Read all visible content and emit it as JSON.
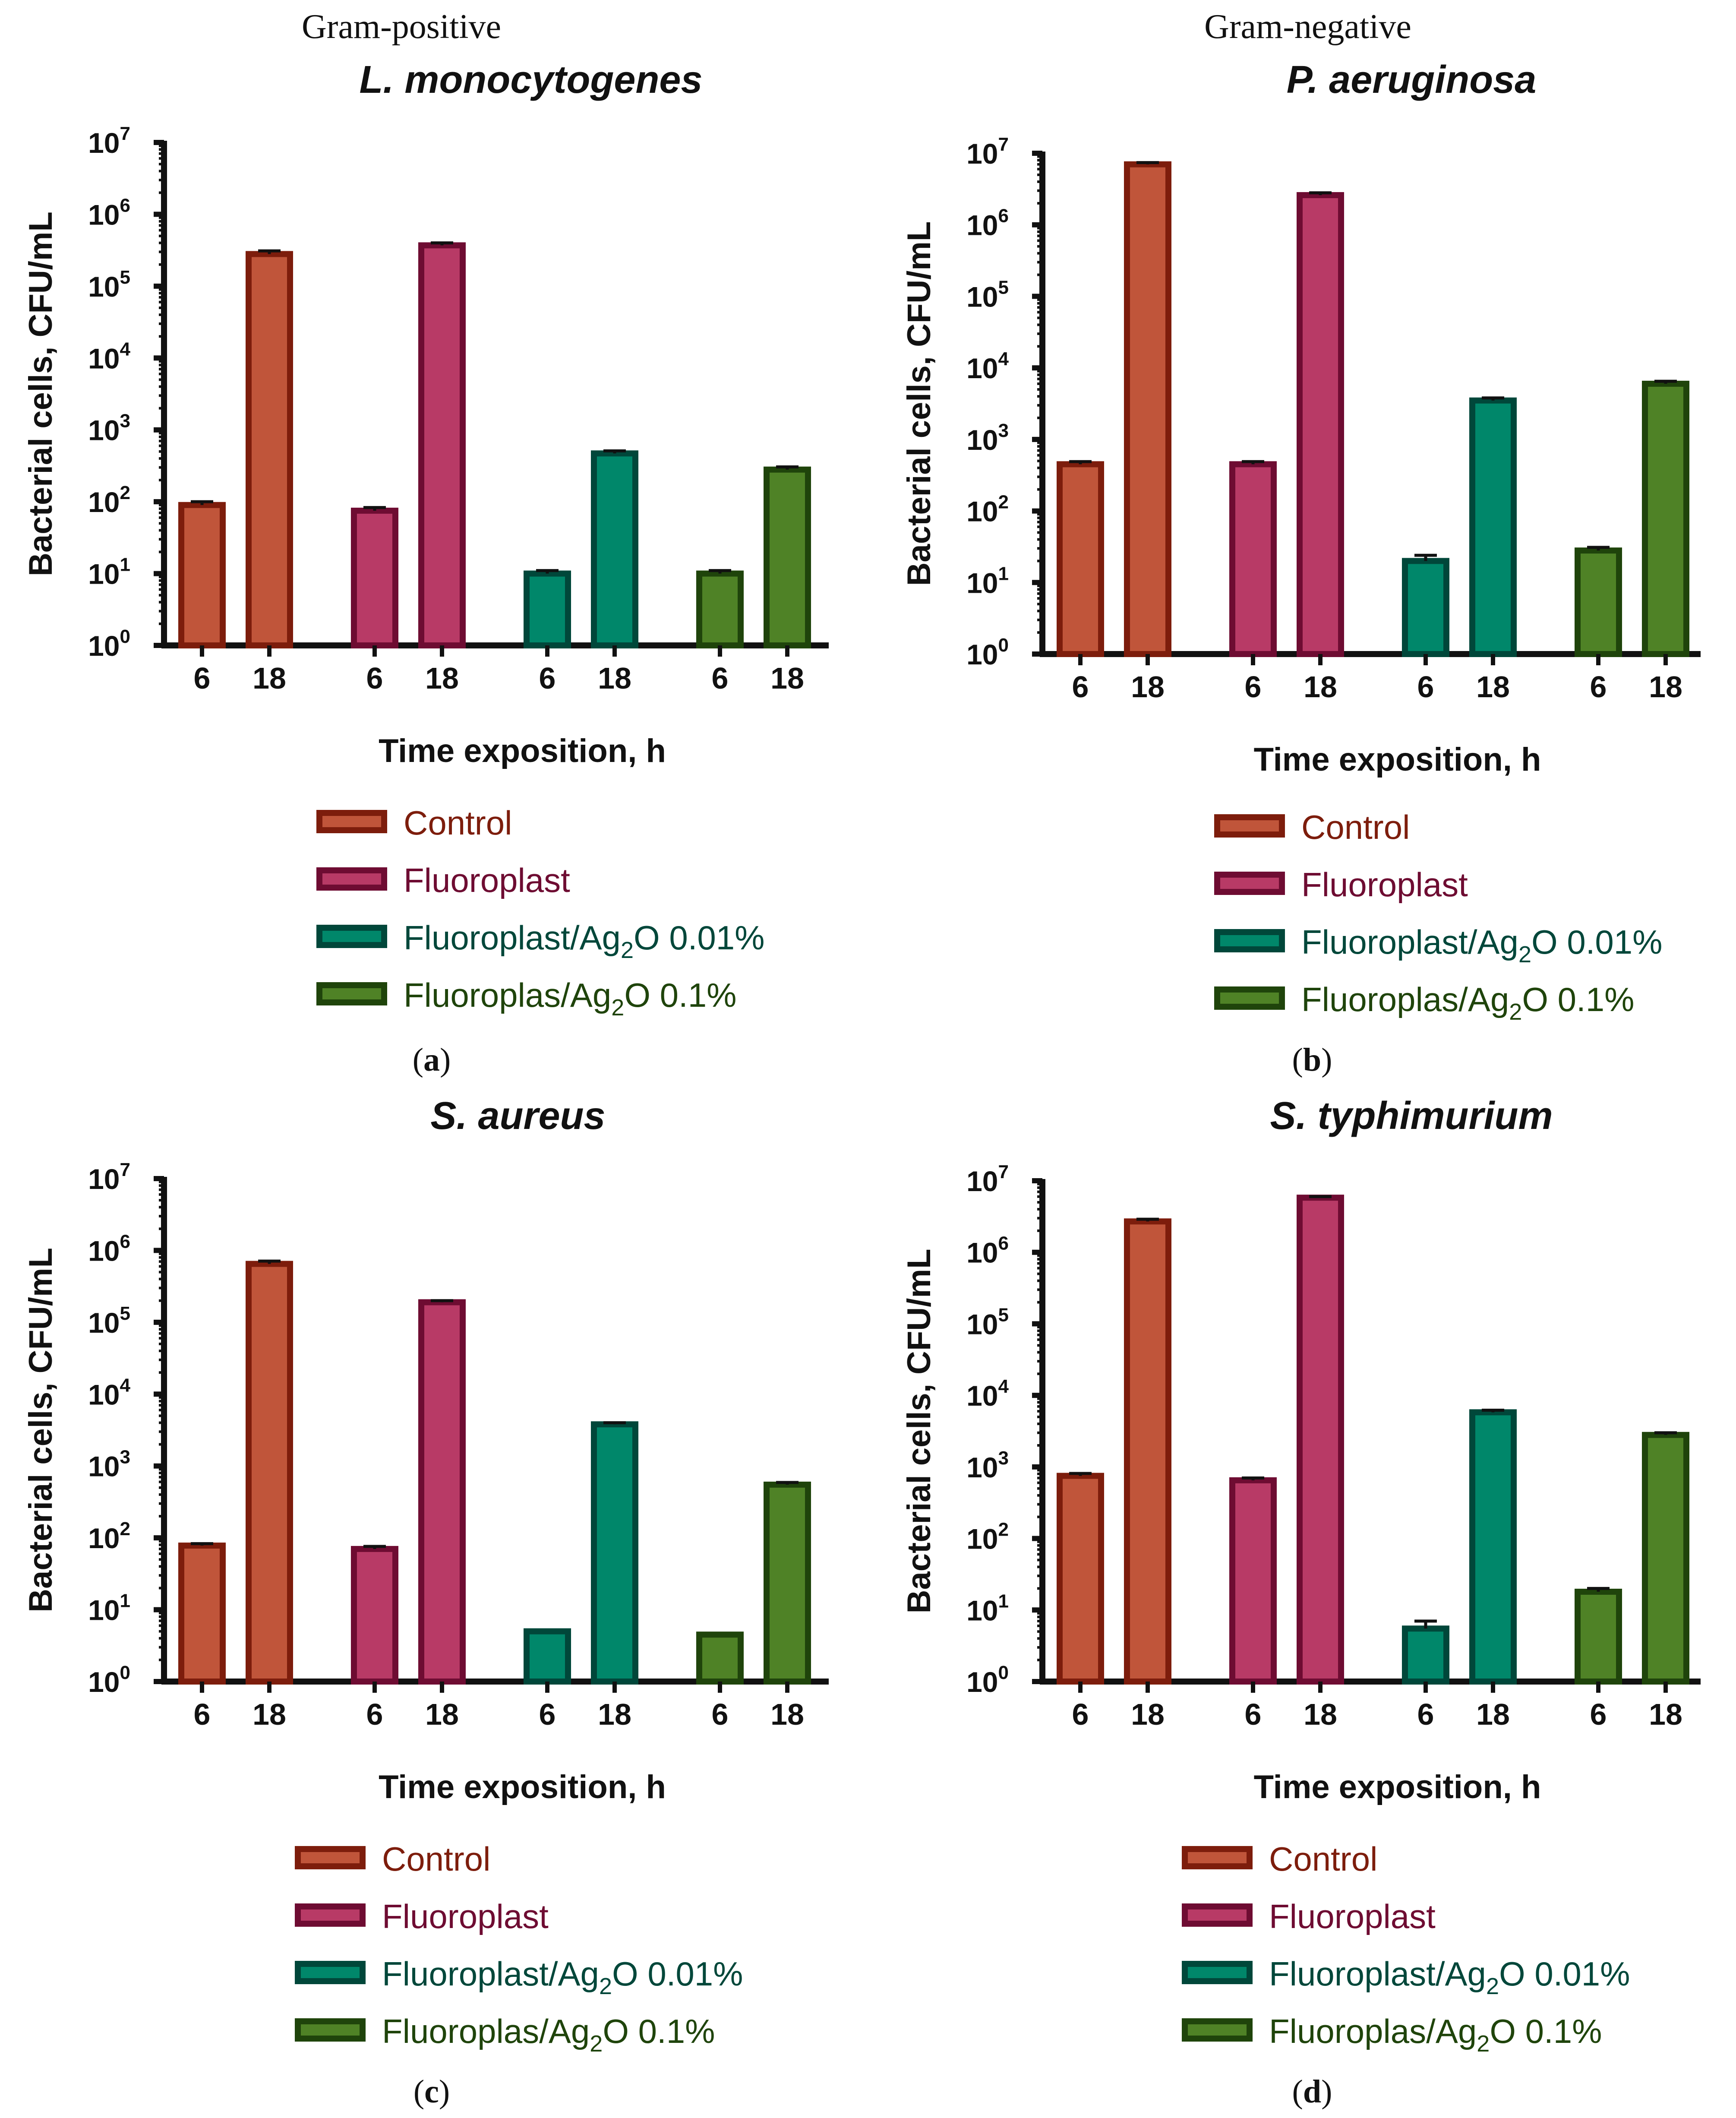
{
  "headers": {
    "left": "Gram-positive",
    "right": "Gram-negative"
  },
  "colors": {
    "control": {
      "fill": "#c0553a",
      "stroke": "#7d1d0c",
      "text": "#7d1d0c"
    },
    "fluoroplast": {
      "fill": "#b83a66",
      "stroke": "#6e0c32",
      "text": "#6e0c32"
    },
    "ag001": {
      "fill": "#00876a",
      "stroke": "#00473a",
      "text": "#00473a"
    },
    "ag01": {
      "fill": "#4f8226",
      "stroke": "#1f440b",
      "text": "#1f440b"
    }
  },
  "chart_data": [
    {
      "id": "a",
      "type": "bar",
      "title": "L. monocytogenes",
      "subcaption": "(a)",
      "ylabel": "Bacterial cells, CFU/mL",
      "xlabel": "Time exposition, h",
      "yscale": "log",
      "ylim": [
        1,
        10000000
      ],
      "ytick_base": "10",
      "ytick_exponents": [
        "0",
        "1",
        "2",
        "3",
        "4",
        "5",
        "6",
        "7"
      ],
      "categories": [
        "6",
        "18"
      ],
      "series": [
        {
          "name": "Control",
          "legend_label": "Control",
          "color_key": "control",
          "values": [
            90,
            280000
          ],
          "errors": [
            10,
            30000
          ]
        },
        {
          "name": "Fluoroplast",
          "legend_label": "Fluoroplast",
          "color_key": "fluoroplast",
          "values": [
            75,
            370000
          ],
          "errors": [
            8,
            30000
          ]
        },
        {
          "name": "Fluoroplast/Ag2O 0.01%",
          "legend_prefix": "Fluoroplast/Ag",
          "legend_sub": "2",
          "legend_suffix": "O 0.01%",
          "color_key": "ag001",
          "values": [
            10,
            470
          ],
          "errors": [
            1,
            40
          ]
        },
        {
          "name": "Fluoroplas/Ag2O 0.1%",
          "legend_prefix": "Fluoroplas/Ag",
          "legend_sub": "2",
          "legend_suffix": "O 0.1%",
          "color_key": "ag01",
          "values": [
            10,
            280
          ],
          "errors": [
            1,
            25
          ]
        }
      ]
    },
    {
      "id": "b",
      "type": "bar",
      "title": "P. aeruginosa",
      "subcaption": "(b)",
      "ylabel": "Bacterial cells, CFU/mL",
      "xlabel": "Time exposition, h",
      "yscale": "log",
      "ylim": [
        1,
        10000000
      ],
      "ytick_base": "10",
      "ytick_exponents": [
        "0",
        "1",
        "2",
        "3",
        "4",
        "5",
        "6",
        "7"
      ],
      "categories": [
        "6",
        "18"
      ],
      "series": [
        {
          "name": "Control",
          "legend_label": "Control",
          "color_key": "control",
          "values": [
            450,
            7000000
          ],
          "errors": [
            40,
            400000
          ]
        },
        {
          "name": "Fluoroplast",
          "legend_label": "Fluoroplast",
          "color_key": "fluoroplast",
          "values": [
            450,
            2600000
          ],
          "errors": [
            40,
            200000
          ]
        },
        {
          "name": "Fluoroplast/Ag2O 0.01%",
          "legend_prefix": "Fluoroplast/Ag",
          "legend_sub": "2",
          "legend_suffix": "O 0.01%",
          "color_key": "ag001",
          "values": [
            20,
            3500
          ],
          "errors": [
            4,
            300
          ]
        },
        {
          "name": "Fluoroplas/Ag2O 0.1%",
          "legend_prefix": "Fluoroplas/Ag",
          "legend_sub": "2",
          "legend_suffix": "O 0.1%",
          "color_key": "ag01",
          "values": [
            28,
            6000
          ],
          "errors": [
            3,
            500
          ]
        }
      ]
    },
    {
      "id": "c",
      "type": "bar",
      "title": "S. aureus",
      "subcaption": "(c)",
      "ylabel": "Bacterial cells, CFU/mL",
      "xlabel": "Time exposition, h",
      "yscale": "log",
      "ylim": [
        1,
        10000000
      ],
      "ytick_base": "10",
      "ytick_exponents": [
        "0",
        "1",
        "2",
        "3",
        "4",
        "5",
        "6",
        "7"
      ],
      "categories": [
        "6",
        "18"
      ],
      "series": [
        {
          "name": "Control",
          "legend_label": "Control",
          "color_key": "control",
          "values": [
            78,
            650000
          ],
          "errors": [
            5,
            60000
          ]
        },
        {
          "name": "Fluoroplast",
          "legend_label": "Fluoroplast",
          "color_key": "fluoroplast",
          "values": [
            70,
            190000
          ],
          "errors": [
            6,
            10000
          ]
        },
        {
          "name": "Fluoroplast/Ag2O 0.01%",
          "legend_prefix": "Fluoroplast/Ag",
          "legend_sub": "2",
          "legend_suffix": "O 0.01%",
          "color_key": "ag001",
          "values": [
            5,
            3800
          ],
          "errors": [
            0,
            200
          ]
        },
        {
          "name": "Fluoroplas/Ag2O 0.1%",
          "legend_prefix": "Fluoroplas/Ag",
          "legend_sub": "2",
          "legend_suffix": "O 0.1%",
          "color_key": "ag01",
          "values": [
            4.5,
            550
          ],
          "errors": [
            0,
            40
          ]
        }
      ]
    },
    {
      "id": "d",
      "type": "bar",
      "title": "S. typhimurium",
      "subcaption": "(d)",
      "ylabel": "Bacterial cells, CFU/mL",
      "xlabel": "Time exposition, h",
      "yscale": "log",
      "ylim": [
        1,
        10000000
      ],
      "ytick_base": "10",
      "ytick_exponents": [
        "0",
        "1",
        "2",
        "3",
        "4",
        "5",
        "6",
        "7"
      ],
      "categories": [
        "6",
        "18"
      ],
      "series": [
        {
          "name": "Control",
          "legend_label": "Control",
          "color_key": "control",
          "values": [
            750,
            2700000
          ],
          "errors": [
            60,
            200000
          ]
        },
        {
          "name": "Fluoroplast",
          "legend_label": "Fluoroplast",
          "color_key": "fluoroplast",
          "values": [
            650,
            5800000
          ],
          "errors": [
            50,
            200000
          ]
        },
        {
          "name": "Fluoroplast/Ag2O 0.01%",
          "legend_prefix": "Fluoroplast/Ag",
          "legend_sub": "2",
          "legend_suffix": "O 0.01%",
          "color_key": "ag001",
          "values": [
            5.5,
            5800
          ],
          "errors": [
            1.5,
            400
          ]
        },
        {
          "name": "Fluoroplas/Ag2O 0.1%",
          "legend_prefix": "Fluoroplas/Ag",
          "legend_sub": "2",
          "legend_suffix": "O 0.1%",
          "color_key": "ag01",
          "values": [
            18,
            2800
          ],
          "errors": [
            2,
            200
          ]
        }
      ]
    }
  ]
}
